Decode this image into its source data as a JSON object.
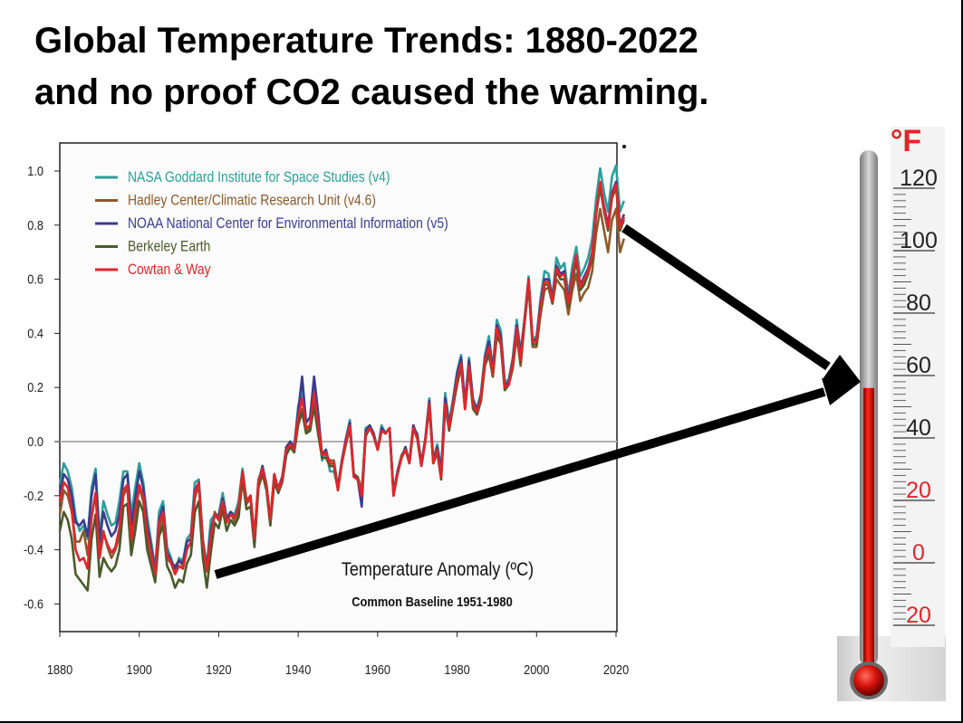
{
  "page": {
    "title_line_1": "Global Temperature Trends: 1880-2022",
    "title_line_2": "and no proof CO2 caused the warming."
  },
  "colors": {
    "nasa": "#2e9e9a",
    "hadley": "#8b5a2b",
    "noaa": "#3b3b8f",
    "berkeley": "#4a5a2a",
    "cowtan": "#e0262b",
    "mercury": "#d8140e",
    "accent_text": "#e0262b"
  },
  "chart_data": [
    {
      "type": "line",
      "title": "Temperature Anomaly (ºC)",
      "subtitle": "Common Baseline 1951-1980",
      "xlabel": "",
      "ylabel": "",
      "xlim": [
        1880,
        2020
      ],
      "ylim": [
        -0.7,
        1.1
      ],
      "xticks": [
        1880,
        1900,
        1920,
        1940,
        1960,
        1980,
        2000,
        2020
      ],
      "yticks": [
        1.0,
        0.8,
        0.6,
        0.4,
        0.2,
        0.0,
        -0.2,
        -0.4,
        -0.6
      ],
      "ytick_labels": [
        "1.0",
        "0.8",
        "0.6",
        "0.4",
        "0.2",
        "0.0",
        "-0.2",
        "-0.4",
        "-0.6"
      ],
      "grid": false,
      "reference_line_y": 0.0,
      "legend_position": "top-left",
      "x": [
        1880,
        1881,
        1882,
        1883,
        1884,
        1885,
        1886,
        1887,
        1888,
        1889,
        1890,
        1891,
        1892,
        1893,
        1894,
        1895,
        1896,
        1897,
        1898,
        1899,
        1900,
        1901,
        1902,
        1903,
        1904,
        1905,
        1906,
        1907,
        1908,
        1909,
        1910,
        1911,
        1912,
        1913,
        1914,
        1915,
        1916,
        1917,
        1918,
        1919,
        1920,
        1921,
        1922,
        1923,
        1924,
        1925,
        1926,
        1927,
        1928,
        1929,
        1930,
        1931,
        1932,
        1933,
        1934,
        1935,
        1936,
        1937,
        1938,
        1939,
        1940,
        1941,
        1942,
        1943,
        1944,
        1945,
        1946,
        1947,
        1948,
        1949,
        1950,
        1951,
        1952,
        1953,
        1954,
        1955,
        1956,
        1957,
        1958,
        1959,
        1960,
        1961,
        1962,
        1963,
        1964,
        1965,
        1966,
        1967,
        1968,
        1969,
        1970,
        1971,
        1972,
        1973,
        1974,
        1975,
        1976,
        1977,
        1978,
        1979,
        1980,
        1981,
        1982,
        1983,
        1984,
        1985,
        1986,
        1987,
        1988,
        1989,
        1990,
        1991,
        1992,
        1993,
        1994,
        1995,
        1996,
        1997,
        1998,
        1999,
        2000,
        2001,
        2002,
        2003,
        2004,
        2005,
        2006,
        2007,
        2008,
        2009,
        2010,
        2011,
        2012,
        2013,
        2014,
        2015,
        2016,
        2017,
        2018,
        2019,
        2020,
        2021,
        2022
      ],
      "series": [
        {
          "name": "NASA Goddard Institute for Space Studies (v4)",
          "color_key": "nasa",
          "values": [
            -0.16,
            -0.08,
            -0.11,
            -0.17,
            -0.28,
            -0.33,
            -0.31,
            -0.36,
            -0.17,
            -0.1,
            -0.35,
            -0.22,
            -0.27,
            -0.31,
            -0.3,
            -0.22,
            -0.11,
            -0.11,
            -0.27,
            -0.17,
            -0.08,
            -0.15,
            -0.28,
            -0.37,
            -0.47,
            -0.26,
            -0.22,
            -0.39,
            -0.43,
            -0.48,
            -0.43,
            -0.44,
            -0.36,
            -0.34,
            -0.15,
            -0.14,
            -0.36,
            -0.46,
            -0.29,
            -0.27,
            -0.27,
            -0.19,
            -0.28,
            -0.26,
            -0.27,
            -0.22,
            -0.1,
            -0.22,
            -0.2,
            -0.36,
            -0.16,
            -0.09,
            -0.16,
            -0.29,
            -0.12,
            -0.19,
            -0.14,
            -0.02,
            -0.0,
            -0.02,
            0.13,
            0.19,
            0.07,
            0.09,
            0.2,
            0.09,
            -0.07,
            -0.03,
            -0.11,
            -0.11,
            -0.17,
            -0.07,
            0.01,
            0.08,
            -0.13,
            -0.14,
            -0.19,
            0.05,
            0.06,
            0.03,
            -0.03,
            0.06,
            0.03,
            0.05,
            -0.2,
            -0.11,
            -0.06,
            -0.02,
            -0.08,
            0.05,
            0.03,
            -0.08,
            0.01,
            0.16,
            -0.07,
            -0.01,
            -0.1,
            0.18,
            0.07,
            0.16,
            0.26,
            0.32,
            0.14,
            0.31,
            0.16,
            0.12,
            0.18,
            0.32,
            0.39,
            0.27,
            0.45,
            0.41,
            0.22,
            0.23,
            0.31,
            0.45,
            0.33,
            0.46,
            0.61,
            0.38,
            0.39,
            0.53,
            0.63,
            0.62,
            0.53,
            0.68,
            0.64,
            0.66,
            0.54,
            0.65,
            0.72,
            0.61,
            0.64,
            0.68,
            0.75,
            0.9,
            1.01,
            0.92,
            0.85,
            0.98,
            1.02,
            0.85,
            0.89
          ]
        },
        {
          "name": "Hadley Center/Climatic Research Unit (v4.6)",
          "color_key": "hadley",
          "values": [
            -0.27,
            -0.18,
            -0.2,
            -0.26,
            -0.37,
            -0.37,
            -0.33,
            -0.42,
            -0.28,
            -0.19,
            -0.41,
            -0.33,
            -0.39,
            -0.43,
            -0.4,
            -0.35,
            -0.2,
            -0.17,
            -0.38,
            -0.27,
            -0.17,
            -0.22,
            -0.36,
            -0.43,
            -0.5,
            -0.33,
            -0.28,
            -0.43,
            -0.45,
            -0.46,
            -0.44,
            -0.46,
            -0.39,
            -0.38,
            -0.21,
            -0.16,
            -0.37,
            -0.48,
            -0.37,
            -0.26,
            -0.29,
            -0.23,
            -0.3,
            -0.26,
            -0.3,
            -0.26,
            -0.13,
            -0.23,
            -0.21,
            -0.35,
            -0.14,
            -0.1,
            -0.16,
            -0.29,
            -0.13,
            -0.17,
            -0.13,
            -0.03,
            -0.0,
            -0.02,
            0.07,
            0.12,
            0.04,
            0.05,
            0.16,
            0.05,
            -0.04,
            -0.05,
            -0.07,
            -0.07,
            -0.17,
            -0.07,
            0.0,
            0.06,
            -0.12,
            -0.13,
            -0.18,
            0.03,
            0.06,
            0.02,
            -0.03,
            0.04,
            0.03,
            0.05,
            -0.19,
            -0.11,
            -0.05,
            -0.03,
            -0.07,
            0.06,
            0.01,
            -0.09,
            0.01,
            0.13,
            -0.08,
            -0.04,
            -0.13,
            0.13,
            0.05,
            0.13,
            0.22,
            0.28,
            0.12,
            0.27,
            0.12,
            0.1,
            0.15,
            0.28,
            0.32,
            0.24,
            0.39,
            0.36,
            0.19,
            0.21,
            0.27,
            0.39,
            0.28,
            0.44,
            0.58,
            0.35,
            0.35,
            0.47,
            0.56,
            0.57,
            0.51,
            0.6,
            0.58,
            0.56,
            0.47,
            0.56,
            0.62,
            0.52,
            0.55,
            0.57,
            0.63,
            0.77,
            0.86,
            0.78,
            0.7,
            0.82,
            0.86,
            0.7,
            0.75
          ]
        },
        {
          "name": "NOAA National Center for Environmental Information (v5)",
          "color_key": "noaa",
          "values": [
            -0.19,
            -0.12,
            -0.14,
            -0.2,
            -0.3,
            -0.31,
            -0.29,
            -0.35,
            -0.2,
            -0.12,
            -0.37,
            -0.26,
            -0.31,
            -0.35,
            -0.33,
            -0.27,
            -0.14,
            -0.12,
            -0.31,
            -0.21,
            -0.11,
            -0.17,
            -0.31,
            -0.39,
            -0.48,
            -0.29,
            -0.24,
            -0.41,
            -0.44,
            -0.47,
            -0.44,
            -0.45,
            -0.37,
            -0.36,
            -0.18,
            -0.15,
            -0.37,
            -0.47,
            -0.33,
            -0.27,
            -0.28,
            -0.21,
            -0.29,
            -0.26,
            -0.28,
            -0.24,
            -0.11,
            -0.22,
            -0.2,
            -0.35,
            -0.15,
            -0.09,
            -0.16,
            -0.29,
            -0.12,
            -0.18,
            -0.13,
            -0.02,
            0.0,
            -0.02,
            0.11,
            0.24,
            0.07,
            0.09,
            0.24,
            0.11,
            -0.05,
            -0.03,
            -0.09,
            -0.09,
            -0.17,
            -0.07,
            0.01,
            0.07,
            -0.12,
            -0.14,
            -0.24,
            0.04,
            0.06,
            0.03,
            -0.03,
            0.05,
            0.03,
            0.05,
            -0.19,
            -0.11,
            -0.06,
            -0.02,
            -0.08,
            0.06,
            0.02,
            -0.08,
            0.01,
            0.15,
            -0.07,
            -0.02,
            -0.11,
            0.16,
            0.06,
            0.15,
            0.25,
            0.31,
            0.14,
            0.3,
            0.15,
            0.12,
            0.17,
            0.31,
            0.37,
            0.26,
            0.43,
            0.39,
            0.21,
            0.22,
            0.3,
            0.43,
            0.32,
            0.45,
            0.6,
            0.37,
            0.38,
            0.51,
            0.6,
            0.6,
            0.53,
            0.65,
            0.62,
            0.63,
            0.52,
            0.62,
            0.68,
            0.58,
            0.61,
            0.64,
            0.7,
            0.85,
            0.95,
            0.87,
            0.8,
            0.92,
            0.96,
            0.8,
            0.84
          ]
        },
        {
          "name": "Berkeley Earth",
          "color_key": "berkeley",
          "values": [
            -0.33,
            -0.26,
            -0.29,
            -0.36,
            -0.49,
            -0.51,
            -0.53,
            -0.55,
            -0.36,
            -0.27,
            -0.5,
            -0.43,
            -0.46,
            -0.48,
            -0.46,
            -0.4,
            -0.24,
            -0.23,
            -0.42,
            -0.33,
            -0.22,
            -0.26,
            -0.4,
            -0.46,
            -0.52,
            -0.35,
            -0.31,
            -0.46,
            -0.49,
            -0.54,
            -0.51,
            -0.52,
            -0.45,
            -0.42,
            -0.26,
            -0.22,
            -0.43,
            -0.54,
            -0.41,
            -0.3,
            -0.32,
            -0.25,
            -0.33,
            -0.29,
            -0.31,
            -0.28,
            -0.14,
            -0.25,
            -0.24,
            -0.39,
            -0.17,
            -0.12,
            -0.18,
            -0.31,
            -0.15,
            -0.19,
            -0.15,
            -0.05,
            -0.02,
            -0.04,
            0.06,
            0.11,
            0.03,
            0.04,
            0.13,
            0.03,
            -0.06,
            -0.06,
            -0.09,
            -0.09,
            -0.18,
            -0.08,
            -0.01,
            0.05,
            -0.13,
            -0.14,
            -0.2,
            0.02,
            0.05,
            0.02,
            -0.03,
            0.04,
            0.03,
            0.05,
            -0.2,
            -0.12,
            -0.06,
            -0.03,
            -0.08,
            0.05,
            0.01,
            -0.09,
            0.0,
            0.13,
            -0.08,
            -0.04,
            -0.14,
            0.13,
            0.04,
            0.13,
            0.21,
            0.28,
            0.12,
            0.27,
            0.13,
            0.1,
            0.15,
            0.29,
            0.33,
            0.24,
            0.4,
            0.36,
            0.19,
            0.21,
            0.28,
            0.41,
            0.29,
            0.44,
            0.58,
            0.36,
            0.36,
            0.49,
            0.58,
            0.58,
            0.51,
            0.63,
            0.6,
            0.6,
            0.5,
            0.59,
            0.67,
            0.56,
            0.58,
            0.62,
            0.68,
            0.84,
            0.94,
            0.85,
            0.78,
            0.9,
            0.94,
            0.78,
            0.82
          ]
        },
        {
          "name": "Cowtan & Way",
          "color_key": "cowtan",
          "values": [
            -0.22,
            -0.15,
            -0.17,
            -0.25,
            -0.4,
            -0.44,
            -0.43,
            -0.47,
            -0.28,
            -0.19,
            -0.43,
            -0.34,
            -0.38,
            -0.41,
            -0.39,
            -0.32,
            -0.18,
            -0.16,
            -0.36,
            -0.26,
            -0.16,
            -0.2,
            -0.34,
            -0.41,
            -0.49,
            -0.3,
            -0.26,
            -0.42,
            -0.45,
            -0.49,
            -0.46,
            -0.47,
            -0.4,
            -0.37,
            -0.19,
            -0.15,
            -0.37,
            -0.48,
            -0.35,
            -0.27,
            -0.29,
            -0.22,
            -0.3,
            -0.27,
            -0.28,
            -0.24,
            -0.11,
            -0.22,
            -0.2,
            -0.36,
            -0.15,
            -0.1,
            -0.16,
            -0.29,
            -0.12,
            -0.18,
            -0.14,
            -0.03,
            -0.01,
            -0.03,
            0.09,
            0.16,
            0.05,
            0.06,
            0.18,
            0.07,
            -0.05,
            -0.04,
            -0.08,
            -0.08,
            -0.18,
            -0.08,
            0.0,
            0.06,
            -0.13,
            -0.14,
            -0.2,
            0.03,
            0.05,
            0.02,
            -0.03,
            0.04,
            0.03,
            0.05,
            -0.2,
            -0.12,
            -0.06,
            -0.03,
            -0.08,
            0.05,
            0.01,
            -0.09,
            0.0,
            0.14,
            -0.08,
            -0.03,
            -0.13,
            0.14,
            0.05,
            0.14,
            0.23,
            0.29,
            0.12,
            0.28,
            0.14,
            0.11,
            0.16,
            0.3,
            0.35,
            0.25,
            0.42,
            0.37,
            0.2,
            0.21,
            0.29,
            0.42,
            0.3,
            0.45,
            0.6,
            0.37,
            0.37,
            0.5,
            0.59,
            0.59,
            0.52,
            0.64,
            0.61,
            0.62,
            0.51,
            0.61,
            0.69,
            0.57,
            0.6,
            0.63,
            0.69,
            0.85,
            0.96,
            0.86,
            0.79,
            0.91,
            0.95,
            0.79,
            0.83
          ]
        }
      ]
    },
    {
      "type": "gauge",
      "title": "°F",
      "scale_labels": [
        "120",
        "100",
        "80",
        "60",
        "40",
        "20",
        "0",
        "20"
      ],
      "scale_colors": [
        "#222222",
        "#222222",
        "#222222",
        "#222222",
        "#222222",
        "#e0262b",
        "#e0262b",
        "#e0262b"
      ],
      "scale_min": -20,
      "scale_max": 120,
      "mercury_value": 56
    }
  ],
  "annotations": {
    "arrows": [
      {
        "from": "2022 temperature level",
        "to": "thermometer ~56 °F"
      },
      {
        "from": "1917 temperature level",
        "to": "thermometer ~56 °F"
      }
    ]
  }
}
